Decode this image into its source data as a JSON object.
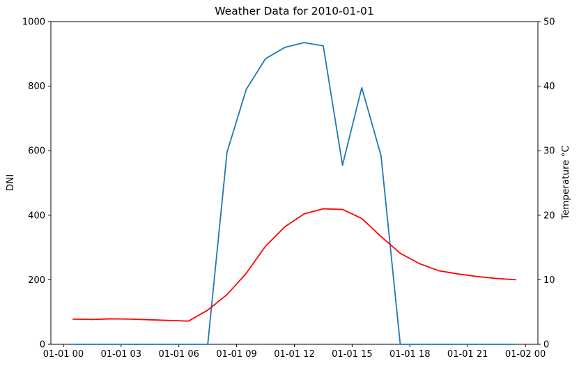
{
  "chart_data": {
    "type": "line",
    "title": "Weather Data for 2010-01-01",
    "grid": false,
    "legend": "none",
    "x_hours": [
      0.5,
      1.5,
      2.5,
      3.5,
      4.5,
      5.5,
      6.5,
      7.5,
      8.5,
      9.5,
      10.5,
      11.5,
      12.5,
      13.5,
      14.5,
      15.5,
      16.5,
      17.5,
      18.5,
      19.5,
      20.5,
      21.5,
      22.5,
      23.5
    ],
    "xlim": [
      -0.65,
      24.65
    ],
    "x_ticks": [
      {
        "hour": 0,
        "label": "01-01 00"
      },
      {
        "hour": 3,
        "label": "01-01 03"
      },
      {
        "hour": 6,
        "label": "01-01 06"
      },
      {
        "hour": 9,
        "label": "01-01 09"
      },
      {
        "hour": 12,
        "label": "01-01 12"
      },
      {
        "hour": 15,
        "label": "01-01 15"
      },
      {
        "hour": 18,
        "label": "01-01 18"
      },
      {
        "hour": 21,
        "label": "01-01 21"
      },
      {
        "hour": 24,
        "label": "01-02 00"
      }
    ],
    "left_axis": {
      "label": "DNI",
      "lim": [
        0,
        1000
      ],
      "ticks": [
        0,
        200,
        400,
        600,
        800,
        1000
      ]
    },
    "right_axis": {
      "label": "Temperature °C",
      "lim": [
        0,
        50
      ],
      "ticks": [
        0,
        10,
        20,
        30,
        40,
        50
      ]
    },
    "series": [
      {
        "name": "DNI",
        "axis": "left",
        "color": "#1f77b4",
        "values": [
          0,
          0,
          0,
          0,
          0,
          0,
          0,
          0,
          595,
          790,
          885,
          920,
          935,
          925,
          555,
          795,
          585,
          0,
          0,
          0,
          0,
          0,
          0,
          0
        ]
      },
      {
        "name": "Temperature",
        "axis": "right",
        "color": "#ff0000",
        "values": [
          3.9,
          3.85,
          3.95,
          3.9,
          3.8,
          3.7,
          3.6,
          5.3,
          7.7,
          11.0,
          15.2,
          18.2,
          20.2,
          21.0,
          20.9,
          19.5,
          16.7,
          14.1,
          12.5,
          11.4,
          10.9,
          10.5,
          10.2,
          10.0
        ]
      }
    ]
  }
}
